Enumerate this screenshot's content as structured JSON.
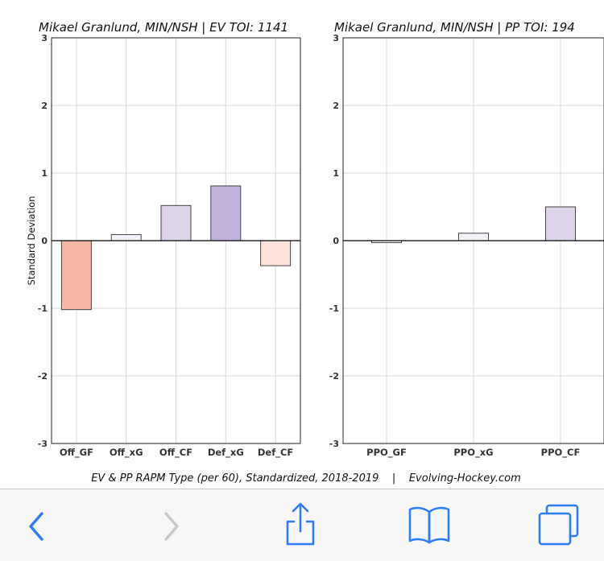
{
  "footer": "EV & PP RAPM Type (per 60), Standardized, 2018-2019    |    Evolving-Hockey.com",
  "colors": {
    "neg_strong": "#f9b8a4",
    "neg_light": "#fde3dc",
    "pos_light": "#ddd4ea",
    "pos_strong": "#c1b3dd",
    "near_zero": "#f4f1f8",
    "ios_blue": "#2f7df6",
    "ios_disabled": "#c8c8cc"
  },
  "toolbar": {
    "items": [
      {
        "name": "back-button",
        "icon": "chevron-left-icon",
        "enabled": true
      },
      {
        "name": "forward-button",
        "icon": "chevron-right-icon",
        "enabled": false
      },
      {
        "name": "share-button",
        "icon": "share-icon",
        "enabled": true
      },
      {
        "name": "bookmarks-button",
        "icon": "book-icon",
        "enabled": true
      },
      {
        "name": "tabs-button",
        "icon": "tabs-icon",
        "enabled": true
      }
    ]
  },
  "chart_data": [
    {
      "type": "bar",
      "title": "Mikael Granlund, MIN/NSH  |  EV TOI: 1141",
      "ylabel": "Standard Deviation",
      "ylim": [
        -3,
        3
      ],
      "yticks": [
        "-3",
        "-2",
        "-1",
        "0",
        "1",
        "2",
        "3"
      ],
      "grid": true,
      "categories": [
        "Off_GF",
        "Off_xG",
        "Off_CF",
        "Def_xG",
        "Def_CF"
      ],
      "values": [
        -1.02,
        0.09,
        0.52,
        0.81,
        -0.37
      ],
      "bar_colors": [
        "#f9b8a4",
        "#f4f1f8",
        "#ddd4ea",
        "#c1b3dd",
        "#fde3dc"
      ]
    },
    {
      "type": "bar",
      "title": "Mikael Granlund, MIN/NSH  |  PP TOI: 194",
      "ylabel": "",
      "ylim": [
        -3,
        3
      ],
      "yticks": [
        "-3",
        "-2",
        "-1",
        "0",
        "1",
        "2",
        "3"
      ],
      "grid": true,
      "categories": [
        "PPO_GF",
        "PPO_xG",
        "PPO_CF"
      ],
      "values": [
        -0.03,
        0.11,
        0.5
      ],
      "bar_colors": [
        "#f7f7f9",
        "#f4f1f8",
        "#ddd4ea"
      ]
    }
  ]
}
